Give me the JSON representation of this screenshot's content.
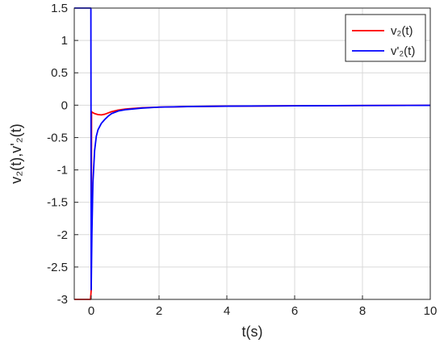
{
  "chart_data": {
    "type": "line",
    "xlabel": "t(s)",
    "ylabel": "v₂(t),v'₂(t)",
    "xlim": [
      -0.5,
      10
    ],
    "ylim": [
      -3,
      1.5
    ],
    "xticks": [
      0,
      2,
      4,
      6,
      8,
      10
    ],
    "xtick_labels": [
      "0",
      "2",
      "4",
      "6",
      "8",
      "10"
    ],
    "yticks": [
      1.5,
      1,
      0.5,
      0,
      -0.5,
      -1,
      -1.5,
      -2,
      -2.5,
      -3
    ],
    "ytick_labels": [
      "1.5",
      "1",
      "0.5",
      "0",
      "-0.5",
      "-1",
      "-1.5",
      "-2",
      "-2.5",
      "-3"
    ],
    "grid": true,
    "legend_position": "top-right",
    "series": [
      {
        "name": "v₂(t)",
        "color": "#ff0000",
        "x": [
          -0.5,
          -0.02,
          0.0,
          0.01,
          0.03,
          0.1,
          0.2,
          0.3,
          0.4,
          0.5,
          0.6,
          0.8,
          1.0,
          1.5,
          2.0,
          3.0,
          4.0,
          6.0,
          8.0,
          10.0
        ],
        "y": [
          -3.0,
          -3.0,
          -2.85,
          -0.1,
          -0.11,
          -0.13,
          -0.145,
          -0.15,
          -0.14,
          -0.12,
          -0.1,
          -0.075,
          -0.06,
          -0.04,
          -0.03,
          -0.02,
          -0.015,
          -0.01,
          -0.005,
          -0.003
        ]
      },
      {
        "name": "v'₂(t)",
        "color": "#0000ff",
        "x": [
          -0.5,
          -0.03,
          -0.01,
          0.0,
          0.02,
          0.05,
          0.1,
          0.15,
          0.2,
          0.3,
          0.4,
          0.5,
          0.6,
          0.8,
          1.0,
          1.5,
          2.0,
          3.0,
          4.0,
          6.0,
          8.0,
          10.0
        ],
        "y": [
          1.5,
          1.5,
          1.5,
          -2.85,
          -2.0,
          -1.2,
          -0.7,
          -0.48,
          -0.38,
          -0.28,
          -0.22,
          -0.17,
          -0.13,
          -0.09,
          -0.07,
          -0.045,
          -0.03,
          -0.02,
          -0.015,
          -0.01,
          -0.005,
          -0.003
        ]
      }
    ]
  }
}
